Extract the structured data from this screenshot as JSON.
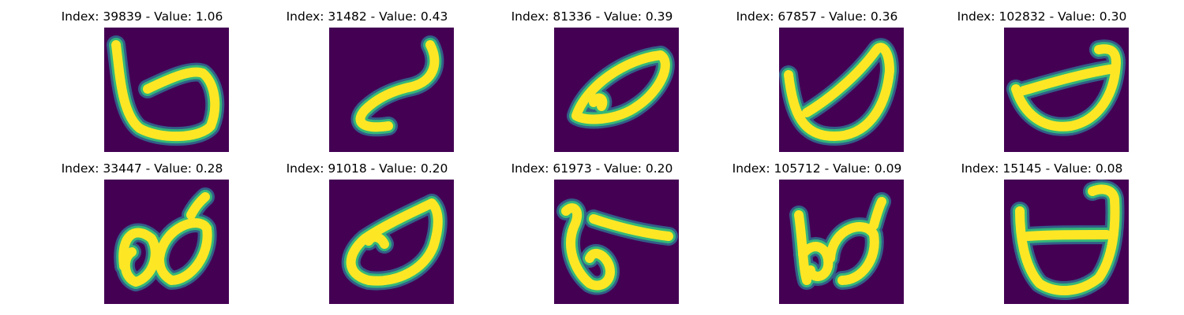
{
  "colors": {
    "background": "#440154",
    "stroke_core": "#fde725",
    "stroke_mid": "#35b779",
    "stroke_edge": "#31688e"
  },
  "panels": [
    {
      "index_label": "Index: 39839 - Value: 1.06",
      "index": 39839,
      "value": 1.06
    },
    {
      "index_label": "Index: 31482 - Value: 0.43",
      "index": 31482,
      "value": 0.43
    },
    {
      "index_label": "Index: 81336 - Value: 0.39",
      "index": 81336,
      "value": 0.39
    },
    {
      "index_label": "Index: 67857 - Value: 0.36",
      "index": 67857,
      "value": 0.36
    },
    {
      "index_label": "Index: 102832 - Value: 0.30",
      "index": 102832,
      "value": 0.3
    },
    {
      "index_label": "Index: 33447 - Value: 0.28",
      "index": 33447,
      "value": 0.28
    },
    {
      "index_label": "Index: 91018 - Value: 0.20",
      "index": 91018,
      "value": 0.2
    },
    {
      "index_label": "Index: 61973 - Value: 0.20",
      "index": 61973,
      "value": 0.2
    },
    {
      "index_label": "Index: 105712 - Value: 0.09",
      "index": 105712,
      "value": 0.09
    },
    {
      "index_label": "Index: 15145 - Value: 0.08",
      "index": 15145,
      "value": 0.08
    }
  ]
}
